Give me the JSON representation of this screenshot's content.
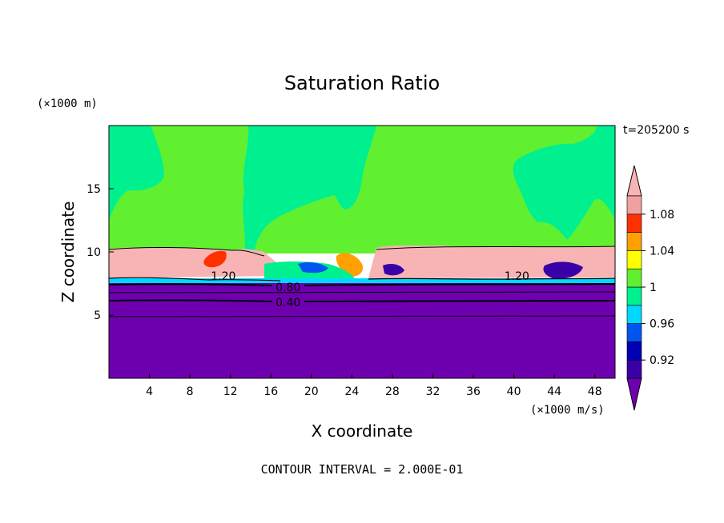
{
  "chart_data": {
    "type": "heatmap",
    "title": "Saturation Ratio",
    "xlabel": "X coordinate",
    "ylabel": "Z coordinate",
    "x_unit": "(×1000 m/s)",
    "y_unit": "(×1000 m)",
    "time_label": "t=205200 s",
    "footer": "CONTOUR INTERVAL = 2.000E-01",
    "xlim": [
      0,
      50
    ],
    "ylim": [
      0,
      20
    ],
    "x_ticks": [
      4,
      8,
      12,
      16,
      20,
      24,
      28,
      32,
      36,
      40,
      44,
      48
    ],
    "y_ticks": [
      5,
      10,
      15
    ],
    "contour_labels": [
      {
        "text": "1.20",
        "x": 11.3,
        "z": 8.1
      },
      {
        "text": "0.80",
        "x": 17.7,
        "z": 7.2
      },
      {
        "text": "0.40",
        "x": 17.7,
        "z": 6.0
      },
      {
        "text": "1.20",
        "x": 40.3,
        "z": 8.1
      }
    ],
    "colorbar": {
      "levels": [
        0.9,
        0.92,
        0.94,
        0.96,
        0.98,
        1.0,
        1.02,
        1.04,
        1.06,
        1.08,
        1.1
      ],
      "colors": [
        "#6f00b0",
        "#3a00a8",
        "#0000b4",
        "#0055f0",
        "#00d8ff",
        "#00f090",
        "#60f030",
        "#ffff00",
        "#ffa000",
        "#ff3000",
        "#f0a0a0",
        "#f8b4b4"
      ],
      "labels": [
        "0.92",
        "0.96",
        "1",
        "1.04",
        "1.08"
      ]
    }
  }
}
